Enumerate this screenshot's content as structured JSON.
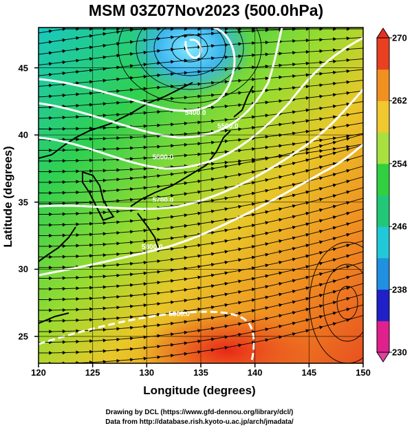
{
  "title": "MSM 03Z07Nov2023 (500.0hPa)",
  "axes": {
    "xlabel": "Longitude (degrees)",
    "ylabel": "Latitude  (degrees)",
    "xlim": [
      120,
      150
    ],
    "ylim": [
      23,
      48
    ],
    "xticks": [
      "120",
      "125",
      "130",
      "135",
      "140",
      "145",
      "150"
    ],
    "yticks": [
      "25",
      "30",
      "35",
      "40",
      "45"
    ]
  },
  "colorbar": {
    "min": 230,
    "max": 270,
    "ticks": [
      "270",
      "262",
      "254",
      "246",
      "238",
      "230"
    ],
    "colors": [
      "#e0208c",
      "#2020c8",
      "#2090e0",
      "#20c8d8",
      "#20c878",
      "#30d040",
      "#a8e040",
      "#f0c830",
      "#f09020",
      "#e84020"
    ]
  },
  "contours": [
    {
      "label": "5400.0",
      "lon": 134.5,
      "lat": 41.5
    },
    {
      "label": "5500.0",
      "lon": 137.5,
      "lat": 40.5
    },
    {
      "label": "5600.0",
      "lon": 131.5,
      "lat": 38.2
    },
    {
      "label": "5700.0",
      "lon": 131.5,
      "lat": 35.0
    },
    {
      "label": "5800.0",
      "lon": 130.5,
      "lat": 31.5
    },
    {
      "label": "5900.0",
      "lon": 133.0,
      "lat": 26.5
    }
  ],
  "credits": {
    "line1": "Drawing by DCL (https://www.gfd-dennou.org/library/dcl/)",
    "line2": "Data from http://database.rish.kyoto-u.ac.jp/arch/jmadata/"
  }
}
